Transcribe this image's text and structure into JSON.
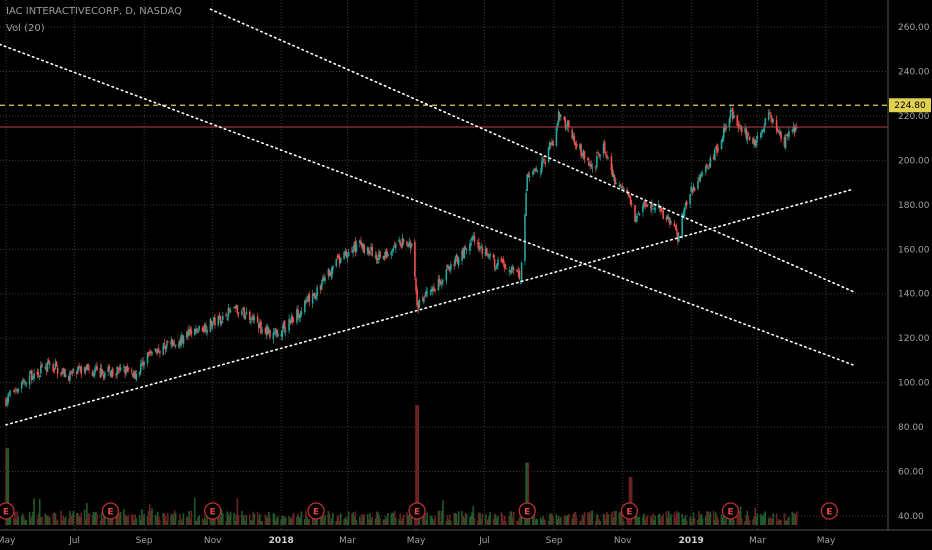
{
  "header": {
    "title": "IAC INTERACTIVECORP, D, NASDAQ",
    "volume_label": "Vol (20)"
  },
  "colors": {
    "background": "#000000",
    "grid": "#3a3a3a",
    "up": "#26a69a",
    "down": "#ef5350",
    "resistance": "#e0d050",
    "current_line": "#c04050",
    "trendline": "#ffffff",
    "earnings": "#c03030"
  },
  "chart_data": {
    "type": "candlestick",
    "symbol": "IAC INTERACTIVECORP",
    "interval": "D",
    "exchange": "NASDAQ",
    "grid": true,
    "y_axis": {
      "side": "right",
      "ticks": [
        {
          "value": 40,
          "label": "40.00"
        },
        {
          "value": 60,
          "label": "60.00"
        },
        {
          "value": 80,
          "label": "80.00"
        },
        {
          "value": 100,
          "label": "100.00"
        },
        {
          "value": 120,
          "label": "120.00"
        },
        {
          "value": 140,
          "label": "140.00"
        },
        {
          "value": 160,
          "label": "160.00"
        },
        {
          "value": 180,
          "label": "180.00"
        },
        {
          "value": 200,
          "label": "200.00"
        },
        {
          "value": 220,
          "label": "220.00"
        },
        {
          "value": 240,
          "label": "240.00"
        },
        {
          "value": 260,
          "label": "260.00"
        }
      ],
      "range": [
        36,
        268
      ]
    },
    "x_axis": {
      "range": [
        "2017-05-01",
        "2019-05-25"
      ],
      "ticks": [
        {
          "date": "2017-05-01",
          "label": "May",
          "bold": false
        },
        {
          "date": "2017-07-01",
          "label": "Jul",
          "bold": false
        },
        {
          "date": "2017-09-01",
          "label": "Sep",
          "bold": false
        },
        {
          "date": "2017-11-01",
          "label": "Nov",
          "bold": false
        },
        {
          "date": "2018-01-01",
          "label": "2018",
          "bold": true
        },
        {
          "date": "2018-03-01",
          "label": "Mar",
          "bold": false
        },
        {
          "date": "2018-05-01",
          "label": "May",
          "bold": false
        },
        {
          "date": "2018-07-01",
          "label": "Jul",
          "bold": false
        },
        {
          "date": "2018-09-01",
          "label": "Sep",
          "bold": false
        },
        {
          "date": "2018-11-01",
          "label": "Nov",
          "bold": false
        },
        {
          "date": "2019-01-01",
          "label": "2019",
          "bold": true
        },
        {
          "date": "2019-03-01",
          "label": "Mar",
          "bold": false
        },
        {
          "date": "2019-05-01",
          "label": "May",
          "bold": false
        }
      ]
    },
    "price_path": [
      [
        "2017-05-01",
        92
      ],
      [
        "2017-05-10",
        98
      ],
      [
        "2017-05-25",
        104
      ],
      [
        "2017-06-10",
        108
      ],
      [
        "2017-06-25",
        103
      ],
      [
        "2017-07-10",
        106
      ],
      [
        "2017-07-25",
        104
      ],
      [
        "2017-08-10",
        106
      ],
      [
        "2017-08-25",
        104
      ],
      [
        "2017-09-05",
        112
      ],
      [
        "2017-09-20",
        117
      ],
      [
        "2017-10-05",
        120
      ],
      [
        "2017-10-20",
        124
      ],
      [
        "2017-11-05",
        128
      ],
      [
        "2017-11-20",
        133
      ],
      [
        "2017-12-05",
        130
      ],
      [
        "2017-12-15",
        124
      ],
      [
        "2017-12-28",
        122
      ],
      [
        "2018-01-10",
        128
      ],
      [
        "2018-01-20",
        134
      ],
      [
        "2018-02-01",
        140
      ],
      [
        "2018-02-10",
        148
      ],
      [
        "2018-02-20",
        154
      ],
      [
        "2018-03-01",
        158
      ],
      [
        "2018-03-10",
        162
      ],
      [
        "2018-03-20",
        160
      ],
      [
        "2018-03-28",
        156
      ],
      [
        "2018-04-08",
        158
      ],
      [
        "2018-04-20",
        164
      ],
      [
        "2018-04-28",
        160
      ],
      [
        "2018-05-02",
        134
      ],
      [
        "2018-05-08",
        138
      ],
      [
        "2018-05-20",
        145
      ],
      [
        "2018-06-01",
        152
      ],
      [
        "2018-06-10",
        158
      ],
      [
        "2018-06-20",
        164
      ],
      [
        "2018-06-28",
        160
      ],
      [
        "2018-07-10",
        154
      ],
      [
        "2018-07-25",
        152
      ],
      [
        "2018-08-02",
        148
      ],
      [
        "2018-08-08",
        192
      ],
      [
        "2018-08-20",
        196
      ],
      [
        "2018-09-01",
        210
      ],
      [
        "2018-09-05",
        220
      ],
      [
        "2018-09-15",
        214
      ],
      [
        "2018-09-25",
        204
      ],
      [
        "2018-10-05",
        196
      ],
      [
        "2018-10-15",
        206
      ],
      [
        "2018-10-25",
        190
      ],
      [
        "2018-11-05",
        186
      ],
      [
        "2018-11-12",
        172
      ],
      [
        "2018-11-20",
        182
      ],
      [
        "2018-12-01",
        180
      ],
      [
        "2018-12-10",
        174
      ],
      [
        "2018-12-20",
        166
      ],
      [
        "2018-12-28",
        182
      ],
      [
        "2019-01-10",
        194
      ],
      [
        "2019-01-25",
        206
      ],
      [
        "2019-02-05",
        222
      ],
      [
        "2019-02-15",
        214
      ],
      [
        "2019-02-25",
        208
      ],
      [
        "2019-03-05",
        212
      ],
      [
        "2019-03-10",
        222
      ],
      [
        "2019-03-18",
        214
      ],
      [
        "2019-03-25",
        208
      ],
      [
        "2019-04-05",
        216
      ]
    ],
    "horizontal_lines": [
      {
        "name": "resistance",
        "value": 224.8,
        "label": "224.80",
        "style": "dashed"
      },
      {
        "name": "current",
        "value": 215,
        "style": "solid"
      }
    ],
    "trendlines": [
      {
        "name": "support-trendline",
        "from": [
          "2017-05-01",
          81
        ],
        "to": [
          "2019-05-25",
          187
        ]
      },
      {
        "name": "channel-upper-trendline",
        "from": [
          "2017-10-30",
          268
        ],
        "to": [
          "2019-05-25",
          141
        ]
      },
      {
        "name": "channel-lower-trendline",
        "from": [
          "2017-02-01",
          268
        ],
        "to": [
          "2019-05-25",
          108
        ]
      }
    ],
    "earnings": {
      "label": "E",
      "dates": [
        "2017-05-01",
        "2017-08-02",
        "2017-11-01",
        "2018-02-01",
        "2018-05-02",
        "2018-08-08",
        "2018-11-07",
        "2019-02-05",
        "2019-05-04"
      ]
    },
    "volume_spikes": [
      {
        "date": "2017-05-02",
        "value": 3.2
      },
      {
        "date": "2018-05-02",
        "value": 5.0
      },
      {
        "date": "2018-08-08",
        "value": 2.6
      },
      {
        "date": "2018-11-08",
        "value": 2.0
      }
    ]
  }
}
